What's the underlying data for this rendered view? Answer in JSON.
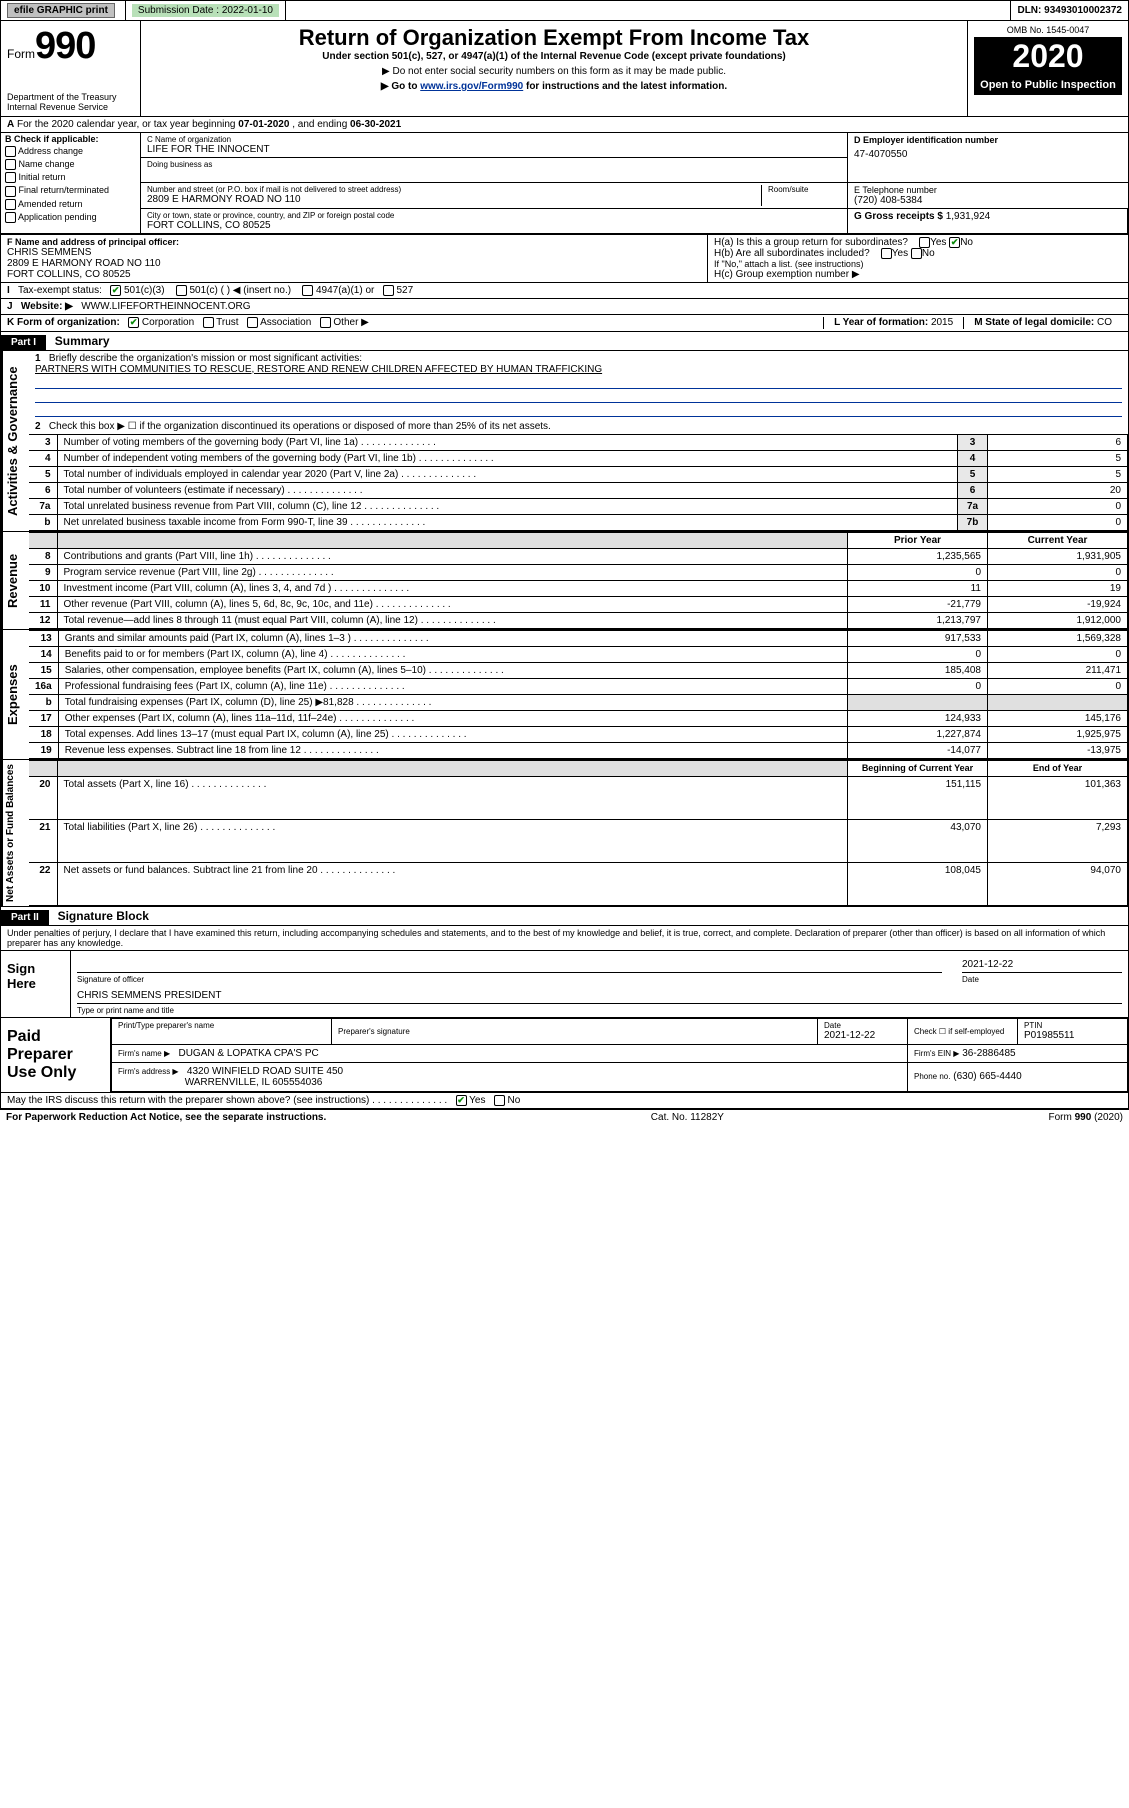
{
  "topbar": {
    "efile": "efile GRAPHIC print",
    "submission_label": "Submission Date : 2022-01-10",
    "dln": "DLN: 93493010002372"
  },
  "header": {
    "form_word": "Form",
    "form_num": "990",
    "dept": "Department of the Treasury\nInternal Revenue Service",
    "title": "Return of Organization Exempt From Income Tax",
    "sub1": "Under section 501(c), 527, or 4947(a)(1) of the Internal Revenue Code (except private foundations)",
    "sub2": "▶ Do not enter social security numbers on this form as it may be made public.",
    "sub3_pre": "▶ Go to ",
    "sub3_link": "www.irs.gov/Form990",
    "sub3_post": " for instructions and the latest information.",
    "omb": "OMB No. 1545-0047",
    "year": "2020",
    "openpub": "Open to Public Inspection"
  },
  "lineA": {
    "text_pre": "For the 2020 calendar year, or tax year beginning ",
    "begin": "07-01-2020",
    "mid": " , and ending ",
    "end": "06-30-2021"
  },
  "boxB": {
    "title": "B Check if applicable:",
    "items": [
      "Address change",
      "Name change",
      "Initial return",
      "Final return/terminated",
      "Amended return",
      "Application pending"
    ]
  },
  "boxC": {
    "label": "C Name of organization",
    "name": "LIFE FOR THE INNOCENT",
    "dba_label": "Doing business as",
    "street_label": "Number and street (or P.O. box if mail is not delivered to street address)",
    "room_label": "Room/suite",
    "street": "2809 E HARMONY ROAD NO 110",
    "city_label": "City or town, state or province, country, and ZIP or foreign postal code",
    "city": "FORT COLLINS, CO  80525"
  },
  "boxD": {
    "label": "D Employer identification number",
    "value": "47-4070550"
  },
  "boxE": {
    "label": "E Telephone number",
    "value": "(720) 408-5384"
  },
  "boxG": {
    "label": "G Gross receipts $",
    "value": "1,931,924"
  },
  "boxF": {
    "label": "F Name and address of principal officer:",
    "name": "CHRIS SEMMENS",
    "addr1": "2809 E HARMONY ROAD NO 110",
    "addr2": "FORT COLLINS, CO  80525"
  },
  "boxH": {
    "a": "H(a)  Is this a group return for subordinates?",
    "b": "H(b)  Are all subordinates included?",
    "note": "If \"No,\" attach a list. (see instructions)",
    "c": "H(c)  Group exemption number ▶"
  },
  "boxI": {
    "label": "Tax-exempt status:",
    "opts": [
      "501(c)(3)",
      "501(c) (  ) ◀ (insert no.)",
      "4947(a)(1) or",
      "527"
    ]
  },
  "boxJ": {
    "label": "Website: ▶",
    "value": "WWW.LIFEFORTHEINNOCENT.ORG"
  },
  "boxK": {
    "label": "K Form of organization:",
    "opts": [
      "Corporation",
      "Trust",
      "Association",
      "Other ▶"
    ]
  },
  "boxL": {
    "label": "L Year of formation:",
    "value": "2015"
  },
  "boxM": {
    "label": "M State of legal domicile:",
    "value": "CO"
  },
  "part1": {
    "bar": "Part I",
    "title": "Summary"
  },
  "governance": {
    "q1": "Briefly describe the organization's mission or most significant activities:",
    "mission": "PARTNERS WITH COMMUNITIES TO RESCUE, RESTORE AND RENEW CHILDREN AFFECTED BY HUMAN TRAFFICKING",
    "q2": "Check this box ▶ ☐  if the organization discontinued its operations or disposed of more than 25% of its net assets.",
    "rows": [
      {
        "n": "3",
        "t": "Number of voting members of the governing body (Part VI, line 1a)",
        "c": "3",
        "v": "6"
      },
      {
        "n": "4",
        "t": "Number of independent voting members of the governing body (Part VI, line 1b)",
        "c": "4",
        "v": "5"
      },
      {
        "n": "5",
        "t": "Total number of individuals employed in calendar year 2020 (Part V, line 2a)",
        "c": "5",
        "v": "5"
      },
      {
        "n": "6",
        "t": "Total number of volunteers (estimate if necessary)",
        "c": "6",
        "v": "20"
      },
      {
        "n": "7a",
        "t": "Total unrelated business revenue from Part VIII, column (C), line 12",
        "c": "7a",
        "v": "0"
      },
      {
        "n": "b",
        "t": "Net unrelated business taxable income from Form 990-T, line 39",
        "c": "7b",
        "v": "0"
      }
    ],
    "vlabel": "Activities & Governance"
  },
  "revenue": {
    "vlabel": "Revenue",
    "head_prior": "Prior Year",
    "head_curr": "Current Year",
    "rows": [
      {
        "n": "8",
        "t": "Contributions and grants (Part VIII, line 1h)",
        "p": "1,235,565",
        "c": "1,931,905"
      },
      {
        "n": "9",
        "t": "Program service revenue (Part VIII, line 2g)",
        "p": "0",
        "c": "0"
      },
      {
        "n": "10",
        "t": "Investment income (Part VIII, column (A), lines 3, 4, and 7d )",
        "p": "11",
        "c": "19"
      },
      {
        "n": "11",
        "t": "Other revenue (Part VIII, column (A), lines 5, 6d, 8c, 9c, 10c, and 11e)",
        "p": "-21,779",
        "c": "-19,924"
      },
      {
        "n": "12",
        "t": "Total revenue—add lines 8 through 11 (must equal Part VIII, column (A), line 12)",
        "p": "1,213,797",
        "c": "1,912,000"
      }
    ]
  },
  "expenses": {
    "vlabel": "Expenses",
    "rows": [
      {
        "n": "13",
        "t": "Grants and similar amounts paid (Part IX, column (A), lines 1–3 )",
        "p": "917,533",
        "c": "1,569,328"
      },
      {
        "n": "14",
        "t": "Benefits paid to or for members (Part IX, column (A), line 4)",
        "p": "0",
        "c": "0"
      },
      {
        "n": "15",
        "t": "Salaries, other compensation, employee benefits (Part IX, column (A), lines 5–10)",
        "p": "185,408",
        "c": "211,471"
      },
      {
        "n": "16a",
        "t": "Professional fundraising fees (Part IX, column (A), line 11e)",
        "p": "0",
        "c": "0"
      },
      {
        "n": "b",
        "t": "Total fundraising expenses (Part IX, column (D), line 25) ▶81,828",
        "p": "",
        "c": "",
        "shade": true
      },
      {
        "n": "17",
        "t": "Other expenses (Part IX, column (A), lines 11a–11d, 11f–24e)",
        "p": "124,933",
        "c": "145,176"
      },
      {
        "n": "18",
        "t": "Total expenses. Add lines 13–17 (must equal Part IX, column (A), line 25)",
        "p": "1,227,874",
        "c": "1,925,975"
      },
      {
        "n": "19",
        "t": "Revenue less expenses. Subtract line 18 from line 12",
        "p": "-14,077",
        "c": "-13,975"
      }
    ]
  },
  "netassets": {
    "vlabel": "Net Assets or Fund Balances",
    "head_prior": "Beginning of Current Year",
    "head_curr": "End of Year",
    "rows": [
      {
        "n": "20",
        "t": "Total assets (Part X, line 16)",
        "p": "151,115",
        "c": "101,363"
      },
      {
        "n": "21",
        "t": "Total liabilities (Part X, line 26)",
        "p": "43,070",
        "c": "7,293"
      },
      {
        "n": "22",
        "t": "Net assets or fund balances. Subtract line 21 from line 20",
        "p": "108,045",
        "c": "94,070"
      }
    ]
  },
  "part2": {
    "bar": "Part II",
    "title": "Signature Block"
  },
  "perjury": "Under penalties of perjury, I declare that I have examined this return, including accompanying schedules and statements, and to the best of my knowledge and belief, it is true, correct, and complete. Declaration of preparer (other than officer) is based on all information of which preparer has any knowledge.",
  "sign": {
    "left": "Sign Here",
    "sig_label": "Signature of officer",
    "date_label": "Date",
    "date": "2021-12-22",
    "name": "CHRIS SEMMENS  PRESIDENT",
    "name_label": "Type or print name and title"
  },
  "prep": {
    "left": "Paid Preparer Use Only",
    "h1": "Print/Type preparer's name",
    "h2": "Preparer's signature",
    "h3": "Date",
    "h3v": "2021-12-22",
    "h4": "Check ☐ if self-employed",
    "h5": "PTIN",
    "h5v": "P01985511",
    "firm_label": "Firm's name    ▶",
    "firm": "DUGAN & LOPATKA CPA'S PC",
    "ein_label": "Firm's EIN ▶",
    "ein": "36-2886485",
    "addr_label": "Firm's address ▶",
    "addr1": "4320 WINFIELD ROAD SUITE 450",
    "addr2": "WARRENVILLE, IL  605554036",
    "phone_label": "Phone no.",
    "phone": "(630) 665-4440"
  },
  "discuss": "May the IRS discuss this return with the preparer shown above? (see instructions)",
  "footer": {
    "left": "For Paperwork Reduction Act Notice, see the separate instructions.",
    "mid": "Cat. No. 11282Y",
    "right": "Form 990 (2020)"
  },
  "colors": {
    "link": "#003399",
    "shade": "#e0e0e0"
  }
}
